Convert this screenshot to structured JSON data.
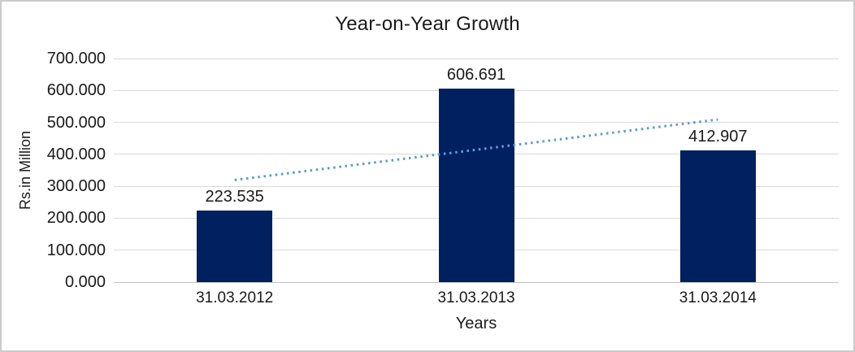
{
  "chart_data": {
    "type": "bar",
    "title": "Year-on-Year Growth",
    "xlabel": "Years",
    "ylabel": "Rs.in Million",
    "categories": [
      "31.03.2012",
      "31.03.2013",
      "31.03.2014"
    ],
    "values": [
      223.535,
      606.691,
      412.907
    ],
    "data_labels": [
      "223.535",
      "606.691",
      "412.907"
    ],
    "ylim": [
      0,
      700
    ],
    "ytick_step": 100,
    "ytick_labels": [
      "0.000",
      "100.000",
      "200.000",
      "300.000",
      "400.000",
      "500.000",
      "600.000",
      "700.000"
    ],
    "grid": true,
    "legend": "none",
    "trendline": {
      "type": "linear",
      "style": "dotted",
      "start_value": 319.69,
      "end_value": 509.06
    },
    "colors": {
      "bar": "#002060",
      "trendline": "#5e9cd3",
      "gridline": "#d9d9d9",
      "axis_line": "#bfbfbf",
      "text": "#1a1a1a",
      "background": "#ffffff",
      "border": "#cccccc"
    }
  }
}
